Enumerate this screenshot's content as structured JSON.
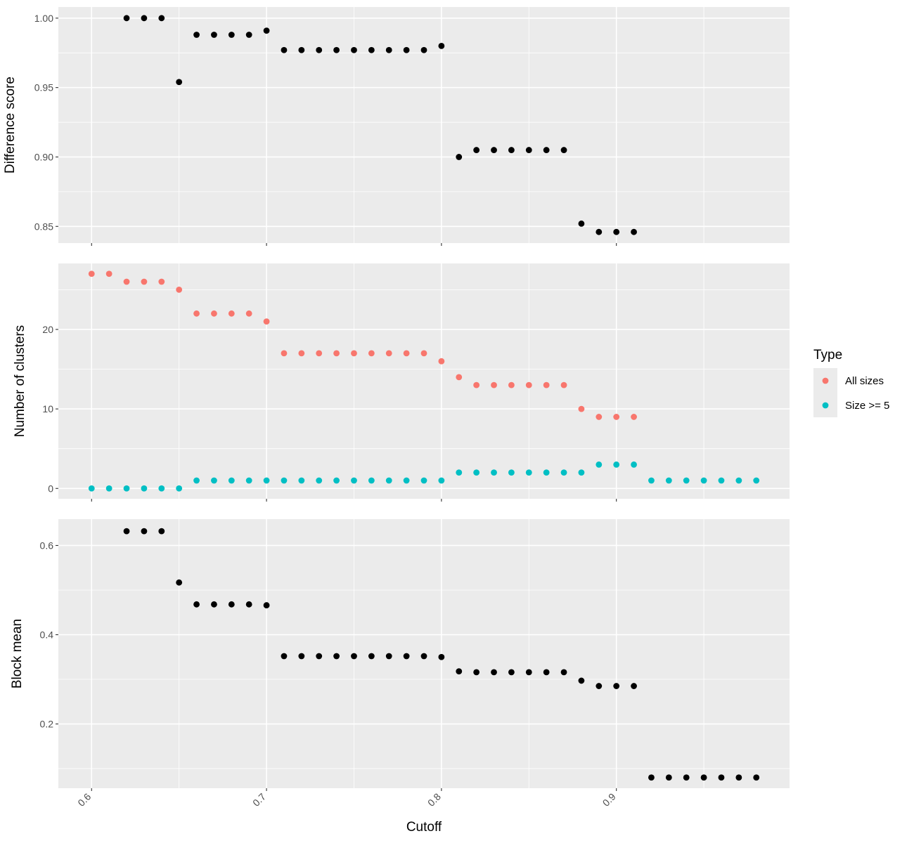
{
  "chart_data": {
    "type": "scatter",
    "xlabel": "Cutoff",
    "x_ticks": [
      "0.6",
      "0.7",
      "0.8",
      "0.9"
    ],
    "x_tick_values": [
      0.6,
      0.7,
      0.8,
      0.9
    ],
    "xlim": [
      0.581,
      0.999
    ],
    "grid": true,
    "legend": {
      "title": "Type",
      "position": "right",
      "entries": [
        {
          "label": "All sizes",
          "color": "#F8766D"
        },
        {
          "label": "Size >= 5",
          "color": "#00BFC4"
        }
      ]
    },
    "panels": [
      {
        "ylabel": "Difference score",
        "ylim": [
          0.838,
          1.008
        ],
        "y_ticks": [
          "0.85",
          "0.90",
          "0.95",
          "1.00"
        ],
        "y_tick_values": [
          0.85,
          0.9,
          0.95,
          1.0
        ],
        "series": [
          {
            "color": "#000000",
            "x": [
              0.62,
              0.63,
              0.64,
              0.65,
              0.66,
              0.67,
              0.68,
              0.69,
              0.7,
              0.71,
              0.72,
              0.73,
              0.74,
              0.75,
              0.76,
              0.77,
              0.78,
              0.79,
              0.8,
              0.81,
              0.82,
              0.83,
              0.84,
              0.85,
              0.86,
              0.87,
              0.88,
              0.89,
              0.9,
              0.91
            ],
            "y": [
              1.0,
              1.0,
              1.0,
              0.954,
              0.988,
              0.988,
              0.988,
              0.988,
              0.991,
              0.977,
              0.977,
              0.977,
              0.977,
              0.977,
              0.977,
              0.977,
              0.977,
              0.977,
              0.98,
              0.9,
              0.905,
              0.905,
              0.905,
              0.905,
              0.905,
              0.905,
              0.852,
              0.846,
              0.846,
              0.846
            ]
          }
        ]
      },
      {
        "ylabel": "Number of clusters",
        "ylim": [
          -1.3,
          28.3
        ],
        "y_ticks": [
          "0",
          "10",
          "20"
        ],
        "y_tick_values": [
          0,
          10,
          20
        ],
        "series": [
          {
            "name": "All sizes",
            "color": "#F8766D",
            "x": [
              0.6,
              0.61,
              0.62,
              0.63,
              0.64,
              0.65,
              0.66,
              0.67,
              0.68,
              0.69,
              0.7,
              0.71,
              0.72,
              0.73,
              0.74,
              0.75,
              0.76,
              0.77,
              0.78,
              0.79,
              0.8,
              0.81,
              0.82,
              0.83,
              0.84,
              0.85,
              0.86,
              0.87,
              0.88,
              0.89,
              0.9,
              0.91
            ],
            "y": [
              27,
              27,
              26,
              26,
              26,
              25,
              22,
              22,
              22,
              22,
              21,
              17,
              17,
              17,
              17,
              17,
              17,
              17,
              17,
              17,
              16,
              14,
              13,
              13,
              13,
              13,
              13,
              13,
              10,
              9,
              9,
              9
            ]
          },
          {
            "name": "Size >= 5",
            "color": "#00BFC4",
            "x": [
              0.6,
              0.61,
              0.62,
              0.63,
              0.64,
              0.65,
              0.66,
              0.67,
              0.68,
              0.69,
              0.7,
              0.71,
              0.72,
              0.73,
              0.74,
              0.75,
              0.76,
              0.77,
              0.78,
              0.79,
              0.8,
              0.81,
              0.82,
              0.83,
              0.84,
              0.85,
              0.86,
              0.87,
              0.88,
              0.89,
              0.9,
              0.91,
              0.92,
              0.93,
              0.94,
              0.95,
              0.96,
              0.97,
              0.98
            ],
            "y": [
              0,
              0,
              0,
              0,
              0,
              0,
              1,
              1,
              1,
              1,
              1,
              1,
              1,
              1,
              1,
              1,
              1,
              1,
              1,
              1,
              1,
              2,
              2,
              2,
              2,
              2,
              2,
              2,
              2,
              3,
              3,
              3,
              1,
              1,
              1,
              1,
              1,
              1,
              1
            ]
          }
        ]
      },
      {
        "ylabel": "Block mean",
        "ylim": [
          0.056,
          0.659
        ],
        "y_ticks": [
          "0.2",
          "0.4",
          "0.6"
        ],
        "y_tick_values": [
          0.2,
          0.4,
          0.6
        ],
        "series": [
          {
            "color": "#000000",
            "x": [
              0.62,
              0.63,
              0.64,
              0.65,
              0.66,
              0.67,
              0.68,
              0.69,
              0.7,
              0.71,
              0.72,
              0.73,
              0.74,
              0.75,
              0.76,
              0.77,
              0.78,
              0.79,
              0.8,
              0.81,
              0.82,
              0.83,
              0.84,
              0.85,
              0.86,
              0.87,
              0.88,
              0.89,
              0.9,
              0.91,
              0.92,
              0.93,
              0.94,
              0.95,
              0.96,
              0.97,
              0.98
            ],
            "y": [
              0.632,
              0.632,
              0.632,
              0.517,
              0.468,
              0.468,
              0.468,
              0.468,
              0.466,
              0.352,
              0.352,
              0.352,
              0.352,
              0.352,
              0.352,
              0.352,
              0.352,
              0.352,
              0.35,
              0.318,
              0.316,
              0.316,
              0.316,
              0.316,
              0.316,
              0.316,
              0.297,
              0.285,
              0.285,
              0.285,
              0.08,
              0.08,
              0.08,
              0.08,
              0.08,
              0.08,
              0.08
            ]
          }
        ]
      }
    ]
  }
}
